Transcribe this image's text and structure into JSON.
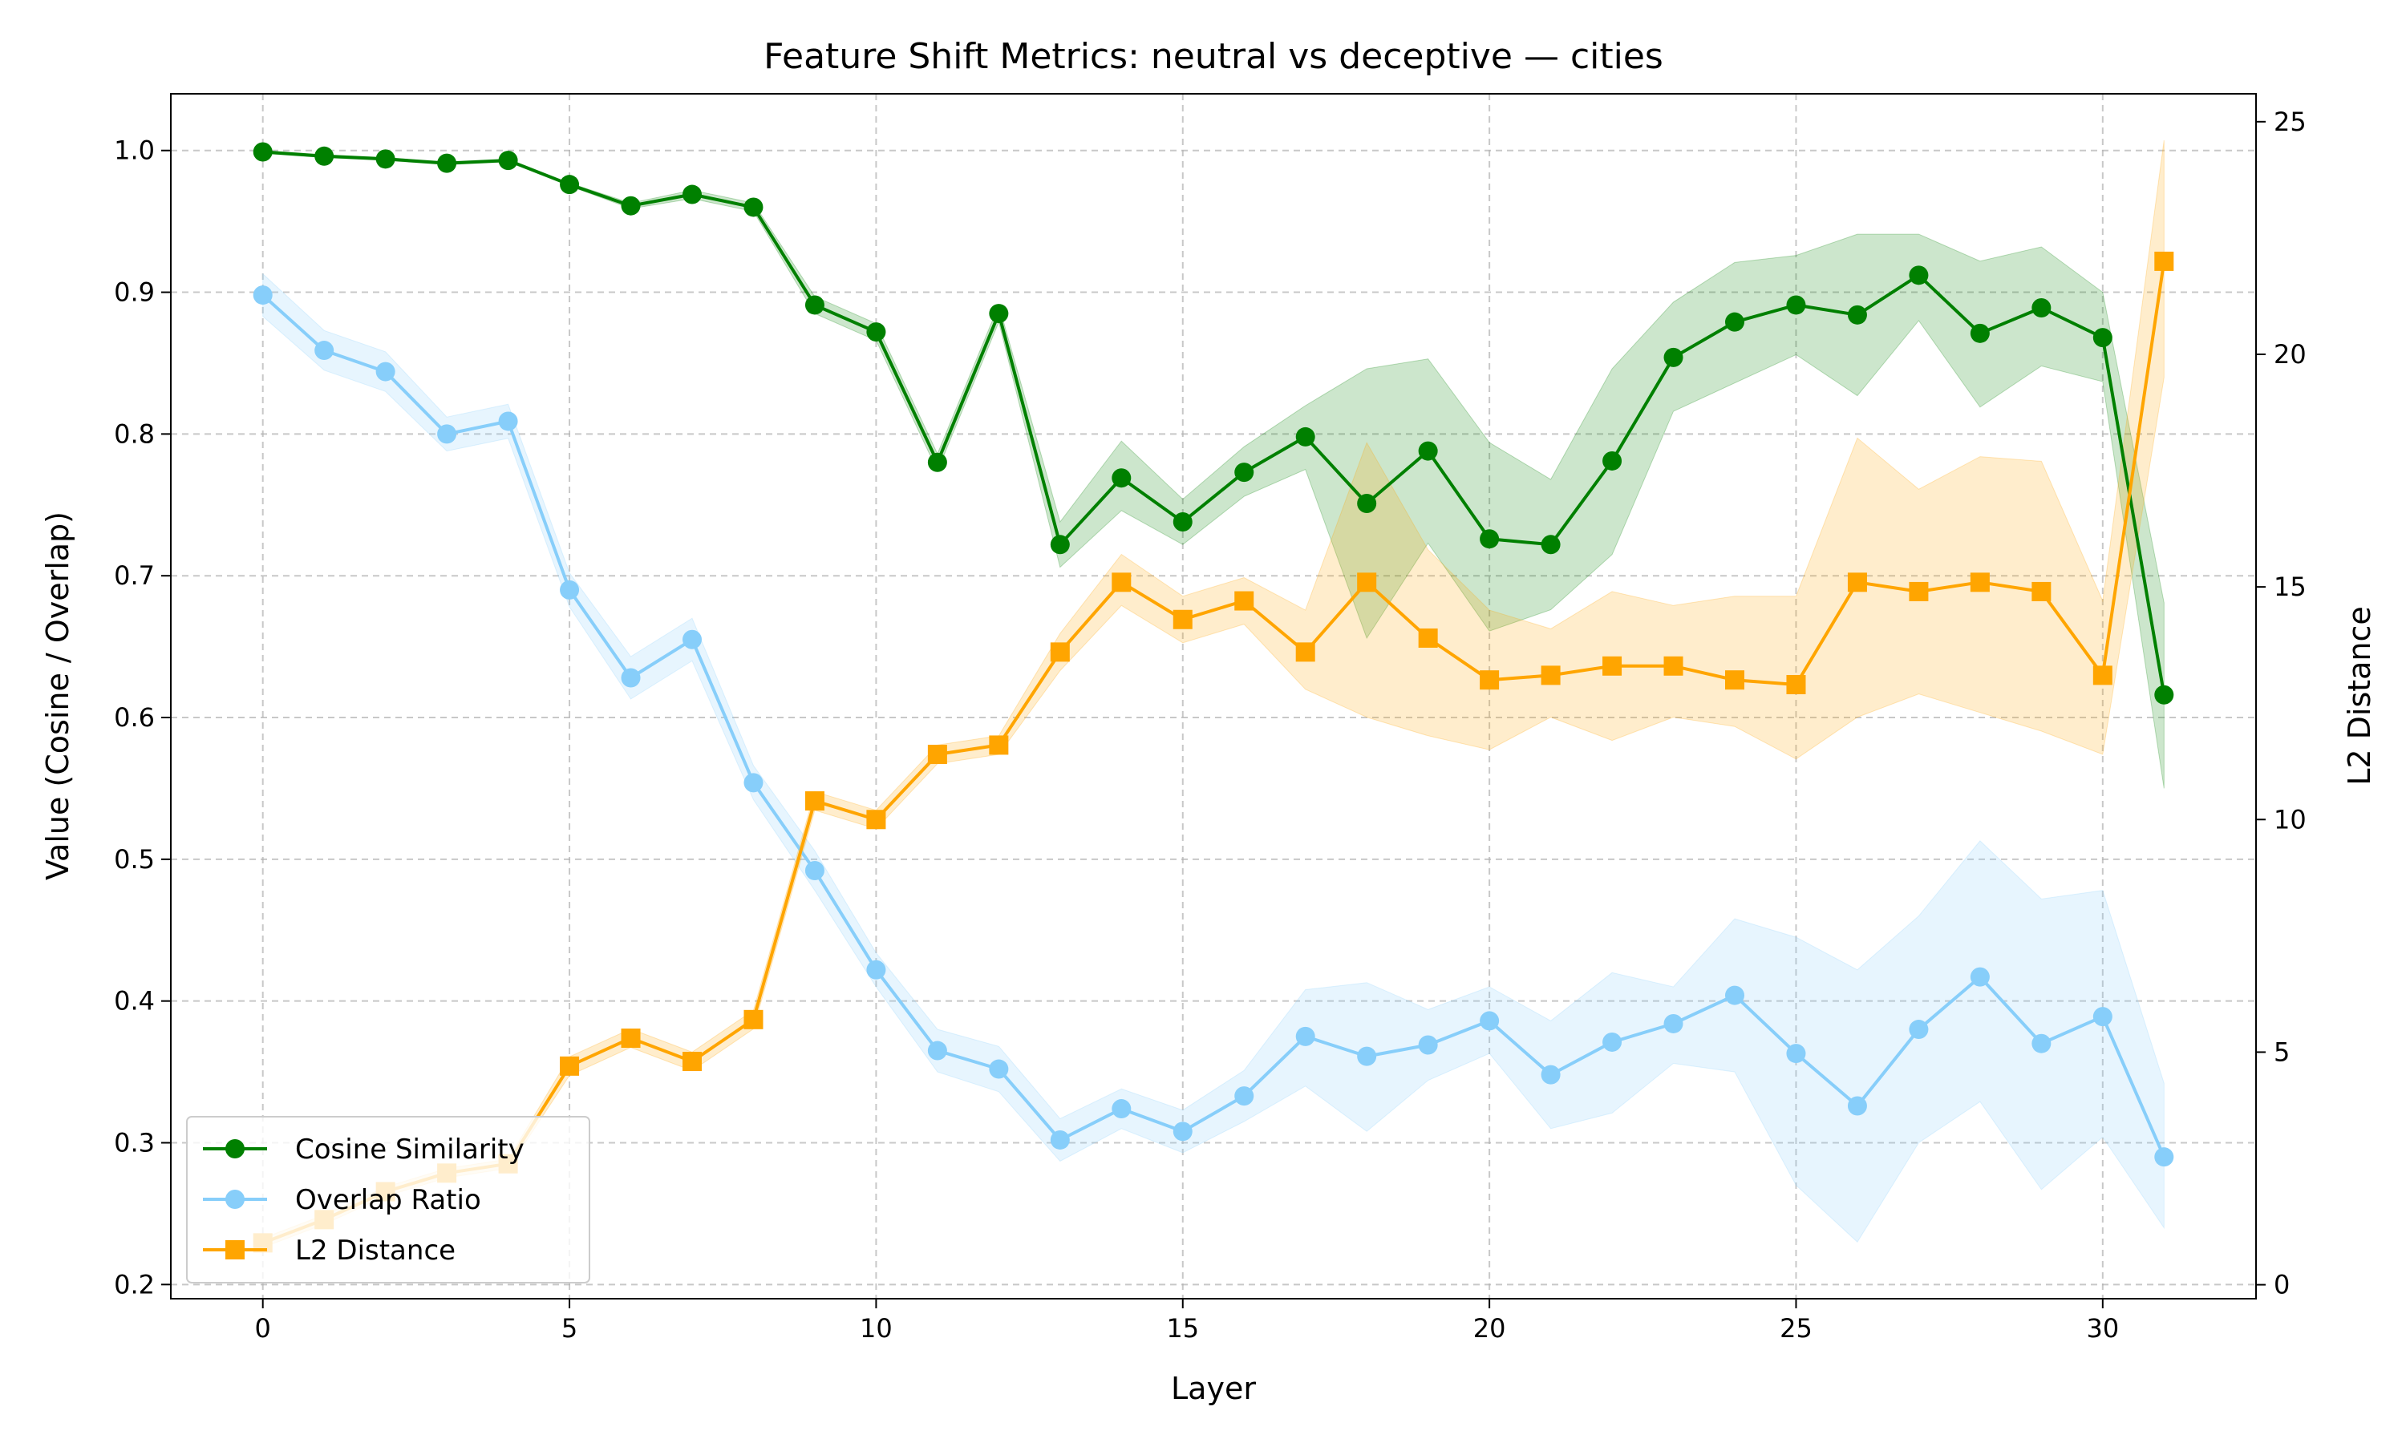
{
  "chart_data": {
    "type": "line",
    "title": "Feature Shift Metrics: neutral vs deceptive — cities",
    "xlabel": "Layer",
    "ylabel_left": "Value (Cosine / Overlap)",
    "ylabel_right": "L2 Distance",
    "xlim": [
      -1.5,
      32.5
    ],
    "ylim_left": [
      0.19,
      1.04
    ],
    "ylim_right": [
      -0.3,
      25.6
    ],
    "xticks": [
      0,
      5,
      10,
      15,
      20,
      25,
      30
    ],
    "yticks_left": [
      0.2,
      0.3,
      0.4,
      0.5,
      0.6,
      0.7,
      0.8,
      0.9,
      1.0
    ],
    "yticks_right": [
      0,
      5,
      10,
      15,
      20,
      25
    ],
    "grid": true,
    "legend_position": "lower-left",
    "x": [
      0,
      1,
      2,
      3,
      4,
      5,
      6,
      7,
      8,
      9,
      10,
      11,
      12,
      13,
      14,
      15,
      16,
      17,
      18,
      19,
      20,
      21,
      22,
      23,
      24,
      25,
      26,
      27,
      28,
      29,
      30,
      31
    ],
    "series": [
      {
        "name": "Cosine Similarity",
        "axis": "left",
        "color": "#008000",
        "marker": "circle",
        "values": [
          0.999,
          0.996,
          0.994,
          0.991,
          0.993,
          0.976,
          0.961,
          0.969,
          0.96,
          0.891,
          0.872,
          0.78,
          0.885,
          0.722,
          0.769,
          0.738,
          0.773,
          0.798,
          0.751,
          0.788,
          0.726,
          0.722,
          0.781,
          0.854,
          0.879,
          0.891,
          0.884,
          0.912,
          0.871,
          0.889,
          0.868,
          0.616
        ],
        "lower": [
          0.998,
          0.995,
          0.993,
          0.99,
          0.992,
          0.975,
          0.959,
          0.966,
          0.957,
          0.885,
          0.866,
          0.774,
          0.879,
          0.706,
          0.746,
          0.722,
          0.756,
          0.775,
          0.656,
          0.723,
          0.661,
          0.676,
          0.715,
          0.816,
          0.836,
          0.856,
          0.827,
          0.88,
          0.819,
          0.848,
          0.837,
          0.55
        ],
        "upper": [
          1.0,
          0.997,
          0.995,
          0.992,
          0.994,
          0.977,
          0.963,
          0.972,
          0.963,
          0.897,
          0.878,
          0.786,
          0.891,
          0.738,
          0.795,
          0.754,
          0.791,
          0.82,
          0.846,
          0.853,
          0.794,
          0.768,
          0.846,
          0.893,
          0.921,
          0.926,
          0.941,
          0.941,
          0.922,
          0.932,
          0.9,
          0.681
        ]
      },
      {
        "name": "Overlap Ratio",
        "axis": "left",
        "color": "#87CEFA",
        "marker": "circle",
        "values": [
          0.898,
          0.859,
          0.844,
          0.8,
          0.809,
          0.69,
          0.628,
          0.655,
          0.554,
          0.492,
          0.422,
          0.365,
          0.352,
          0.302,
          0.324,
          0.308,
          0.333,
          0.375,
          0.361,
          0.369,
          0.386,
          0.348,
          0.371,
          0.384,
          0.404,
          0.363,
          0.326,
          0.38,
          0.417,
          0.37,
          0.389,
          0.29
        ],
        "lower": [
          0.883,
          0.845,
          0.83,
          0.788,
          0.797,
          0.678,
          0.613,
          0.64,
          0.542,
          0.478,
          0.41,
          0.35,
          0.336,
          0.287,
          0.31,
          0.293,
          0.315,
          0.34,
          0.308,
          0.344,
          0.363,
          0.31,
          0.321,
          0.356,
          0.35,
          0.27,
          0.23,
          0.3,
          0.329,
          0.267,
          0.304,
          0.24
        ],
        "upper": [
          0.913,
          0.873,
          0.858,
          0.812,
          0.821,
          0.702,
          0.643,
          0.67,
          0.566,
          0.506,
          0.434,
          0.38,
          0.368,
          0.317,
          0.338,
          0.323,
          0.351,
          0.408,
          0.413,
          0.394,
          0.41,
          0.386,
          0.42,
          0.41,
          0.458,
          0.445,
          0.422,
          0.46,
          0.513,
          0.472,
          0.478,
          0.342
        ]
      },
      {
        "name": "L2 Distance",
        "axis": "right",
        "color": "#FFA500",
        "marker": "square",
        "values": [
          0.9,
          1.4,
          2.0,
          2.4,
          2.6,
          4.7,
          5.3,
          4.8,
          5.7,
          10.4,
          10.0,
          11.4,
          11.6,
          13.6,
          15.1,
          14.3,
          14.7,
          13.6,
          15.1,
          13.9,
          13.0,
          13.1,
          13.3,
          13.3,
          13.0,
          12.9,
          15.1,
          14.9,
          15.1,
          14.9,
          13.1,
          22.0
        ],
        "lower": [
          0.8,
          1.3,
          1.9,
          2.3,
          2.5,
          4.5,
          5.1,
          4.6,
          5.5,
          10.2,
          9.8,
          11.2,
          11.4,
          13.2,
          14.6,
          13.8,
          14.2,
          12.8,
          12.2,
          11.8,
          11.5,
          12.2,
          11.7,
          12.2,
          12.0,
          11.3,
          12.2,
          12.7,
          12.3,
          11.9,
          11.4,
          19.5
        ],
        "upper": [
          1.0,
          1.5,
          2.1,
          2.5,
          2.7,
          4.9,
          5.5,
          5.0,
          5.9,
          10.6,
          10.2,
          11.6,
          11.8,
          14.0,
          15.7,
          14.8,
          15.2,
          14.5,
          18.1,
          15.8,
          14.5,
          14.1,
          14.9,
          14.6,
          14.8,
          14.8,
          18.2,
          17.1,
          17.8,
          17.7,
          14.7,
          24.6
        ]
      }
    ]
  }
}
